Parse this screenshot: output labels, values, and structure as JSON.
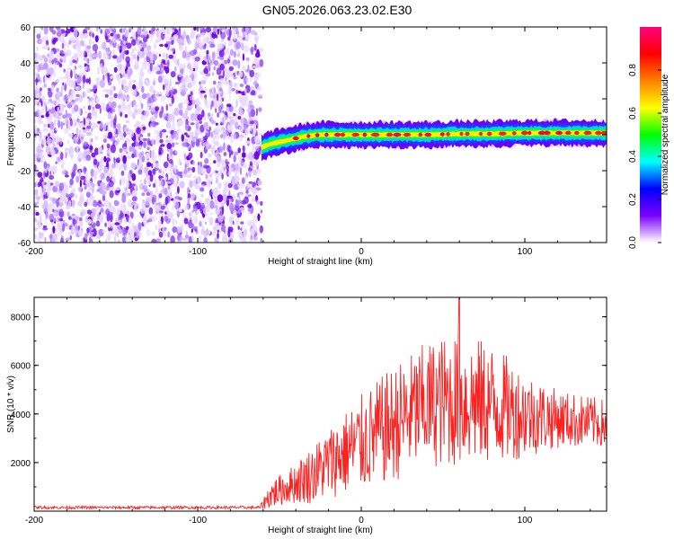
{
  "figure": {
    "title": "GN05.2026.063.23.02.E30"
  },
  "chart_data": [
    {
      "type": "heatmap",
      "xlabel": "Height of straight line (km)",
      "ylabel": "Frequency (Hz)",
      "xlim": [
        -200,
        150
      ],
      "ylim": [
        -60,
        60
      ],
      "xticks": [
        -200,
        -100,
        0,
        100
      ],
      "yticks": [
        -60,
        -40,
        -20,
        0,
        20,
        40,
        60
      ],
      "colorbar": {
        "label": "Normalized spectral amplitude",
        "range": [
          0,
          1
        ],
        "ticks": [
          "0.0",
          "0.2",
          "0.4",
          "0.6",
          "0.8"
        ],
        "colors": [
          "#ffffff",
          "#7a00ff",
          "#0000ff",
          "#00ffff",
          "#00ff00",
          "#ffff00",
          "#ff8000",
          "#ff0000",
          "#ff0080"
        ]
      },
      "noise_region": {
        "x": [
          -200,
          -61
        ],
        "y": [
          -60,
          60
        ],
        "amplitude": 0.08
      },
      "signal_track": {
        "x": [
          -61,
          -55,
          -45,
          -35,
          -25,
          -10,
          0,
          20,
          40,
          60,
          80,
          100,
          120,
          150
        ],
        "freq": [
          -7,
          -5,
          -3,
          -1,
          0,
          0,
          0,
          0,
          0,
          0.5,
          0.5,
          1,
          1,
          1
        ],
        "peak_amplitude": 0.95
      }
    },
    {
      "type": "line",
      "xlabel": "Height of straight line (km)",
      "ylabel": "SNR (10 * v/v)",
      "xlim": [
        -200,
        150
      ],
      "ylim": [
        0,
        8800
      ],
      "xticks": [
        -200,
        -100,
        0,
        100
      ],
      "yticks": [
        2000,
        4000,
        6000,
        8000
      ],
      "color": "#ff2020",
      "envelope": {
        "x": [
          -200,
          -62,
          -55,
          -45,
          -30,
          -15,
          0,
          20,
          40,
          60,
          80,
          100,
          120,
          150
        ],
        "mean": [
          150,
          150,
          700,
          1000,
          1500,
          2200,
          2800,
          3600,
          4400,
          4600,
          4400,
          4000,
          3800,
          3600
        ],
        "amp": [
          60,
          60,
          600,
          700,
          1200,
          1600,
          2000,
          2400,
          2600,
          2800,
          2500,
          1800,
          1200,
          1000
        ]
      },
      "peak": {
        "x": 60,
        "y": 8800
      }
    }
  ]
}
